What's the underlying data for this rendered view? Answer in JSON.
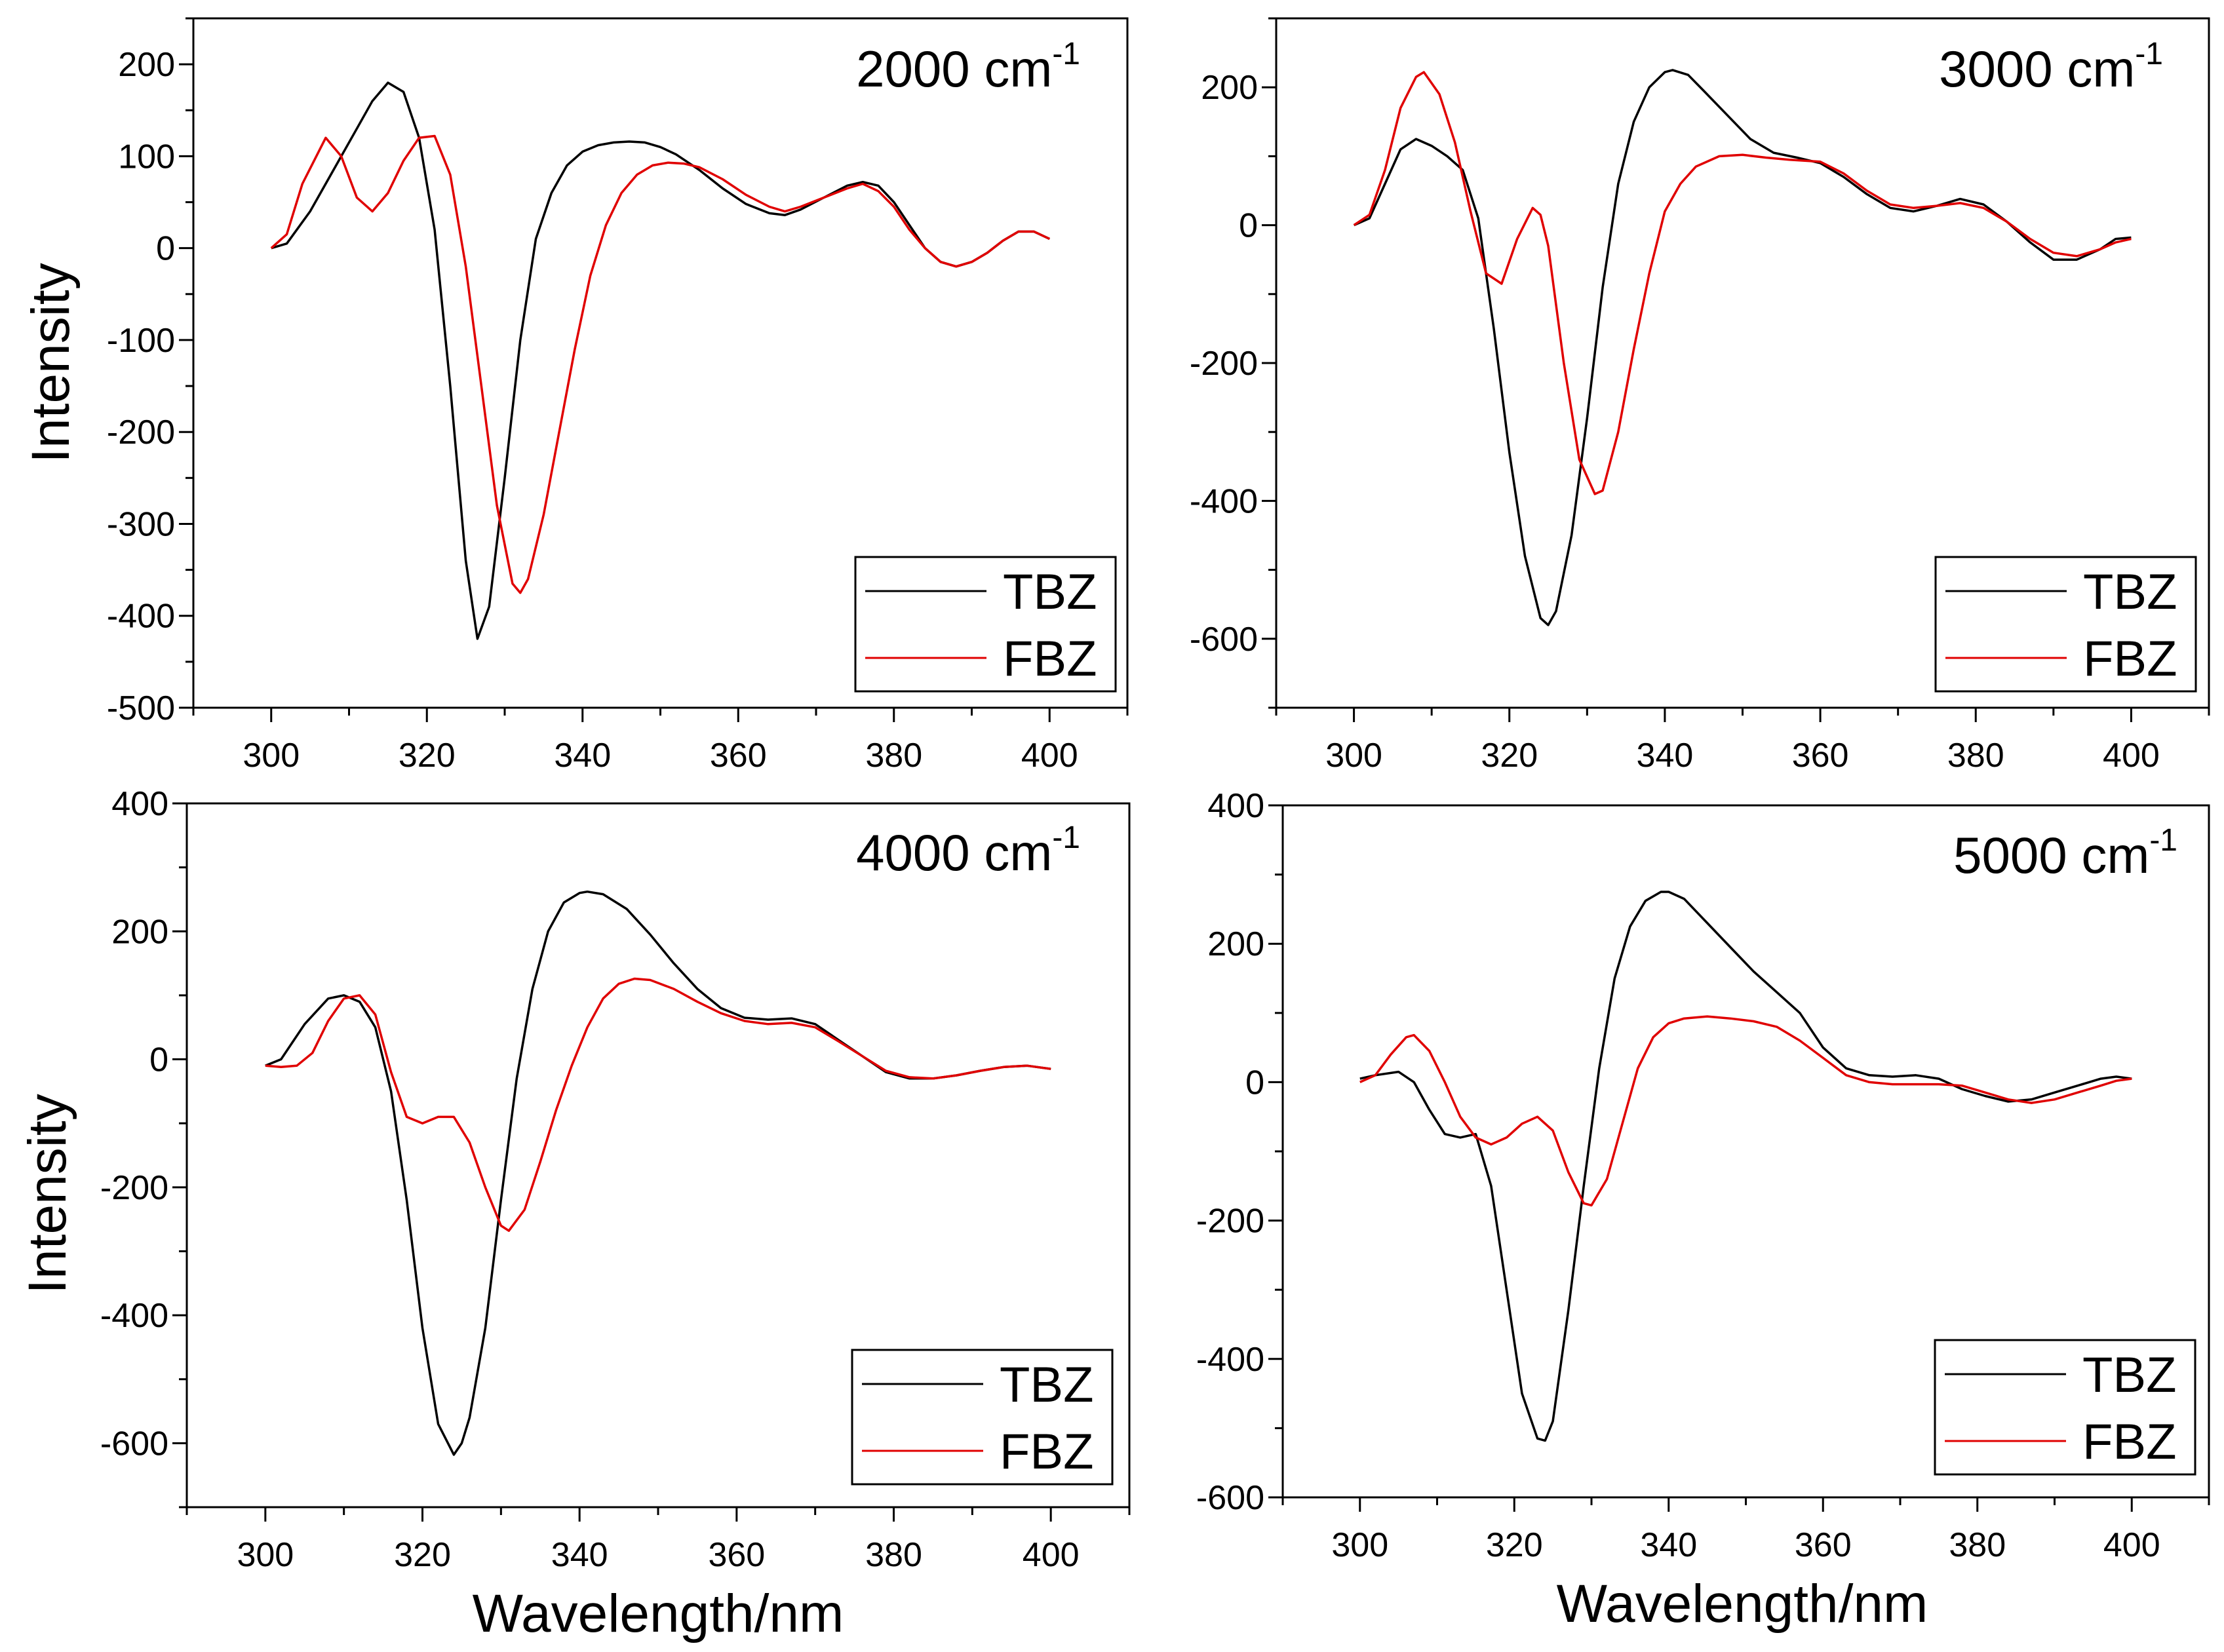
{
  "chart_data": [
    {
      "type": "line",
      "panel": "top-left",
      "title": "2000 cm",
      "title_superscript": "-1",
      "xlabel": "",
      "ylabel": "Intensity",
      "xlim": [
        290,
        410
      ],
      "ylim": [
        -500,
        250
      ],
      "xticks": [
        300,
        320,
        340,
        360,
        380,
        400
      ],
      "yticks": [
        200,
        100,
        0,
        -100,
        -200,
        -300,
        -400,
        -500
      ],
      "legend_position": "bottom-right",
      "series": [
        {
          "name": "TBZ",
          "color": "#000000",
          "x": [
            300,
            302,
            305,
            308,
            311,
            313,
            315,
            317,
            319,
            321,
            323,
            325,
            326.5,
            328,
            330,
            332,
            334,
            336,
            338,
            340,
            342,
            344,
            346,
            348,
            350,
            352,
            355,
            358,
            361,
            364,
            366,
            368,
            371,
            374,
            376,
            378,
            380,
            382,
            384,
            386,
            388,
            390,
            392,
            394,
            396,
            398,
            400
          ],
          "y": [
            0,
            5,
            40,
            85,
            130,
            160,
            180,
            170,
            120,
            20,
            -150,
            -340,
            -425,
            -390,
            -250,
            -100,
            10,
            60,
            90,
            105,
            112,
            115,
            116,
            115,
            110,
            102,
            85,
            65,
            48,
            38,
            36,
            42,
            55,
            68,
            72,
            68,
            50,
            25,
            0,
            -15,
            -20,
            -15,
            -5,
            8,
            18,
            18,
            10
          ]
        },
        {
          "name": "FBZ",
          "color": "#e00000",
          "x": [
            300,
            302,
            304,
            307,
            309,
            311,
            313,
            315,
            317,
            319,
            321,
            323,
            325,
            327,
            329,
            331,
            332,
            333,
            335,
            337,
            339,
            341,
            343,
            345,
            347,
            349,
            351,
            353,
            355,
            358,
            361,
            364,
            366,
            368,
            371,
            374,
            376,
            378,
            380,
            382,
            384,
            386,
            388,
            390,
            392,
            394,
            396,
            398,
            400
          ],
          "y": [
            0,
            15,
            70,
            120,
            100,
            55,
            40,
            60,
            95,
            120,
            122,
            80,
            -20,
            -150,
            -280,
            -365,
            -375,
            -360,
            -290,
            -200,
            -110,
            -30,
            25,
            60,
            80,
            90,
            93,
            92,
            88,
            75,
            58,
            45,
            40,
            45,
            55,
            65,
            70,
            62,
            45,
            20,
            0,
            -15,
            -20,
            -15,
            -5,
            8,
            18,
            18,
            10
          ]
        }
      ]
    },
    {
      "type": "line",
      "panel": "top-right",
      "title": "3000 cm",
      "title_superscript": "-1",
      "xlabel": "",
      "ylabel": "",
      "xlim": [
        290,
        410
      ],
      "ylim": [
        -700,
        300
      ],
      "xticks": [
        300,
        320,
        340,
        360,
        380,
        400
      ],
      "yticks": [
        200,
        0,
        -200,
        -400,
        -600
      ],
      "legend_position": "bottom-right",
      "series": [
        {
          "name": "TBZ",
          "color": "#000000",
          "x": [
            300,
            302,
            304,
            306,
            308,
            310,
            312,
            314,
            316,
            318,
            320,
            322,
            324,
            325,
            326,
            328,
            330,
            332,
            334,
            336,
            338,
            340,
            341,
            343,
            345,
            348,
            351,
            354,
            357,
            360,
            363,
            366,
            369,
            372,
            375,
            378,
            381,
            384,
            387,
            390,
            393,
            396,
            398,
            400
          ],
          "y": [
            0,
            10,
            60,
            110,
            125,
            115,
            100,
            80,
            10,
            -150,
            -330,
            -480,
            -570,
            -580,
            -560,
            -450,
            -280,
            -90,
            60,
            150,
            200,
            222,
            225,
            218,
            195,
            160,
            125,
            105,
            98,
            90,
            70,
            45,
            25,
            20,
            28,
            38,
            30,
            5,
            -25,
            -50,
            -50,
            -35,
            -20,
            -18
          ]
        },
        {
          "name": "FBZ",
          "color": "#e00000",
          "x": [
            300,
            302,
            304,
            306,
            308,
            309,
            311,
            313,
            315,
            317,
            319,
            321,
            323,
            324,
            325,
            327,
            329,
            331,
            332,
            334,
            336,
            338,
            340,
            342,
            344,
            347,
            350,
            353,
            356,
            360,
            363,
            366,
            369,
            372,
            375,
            378,
            381,
            384,
            387,
            390,
            393,
            396,
            398,
            400
          ],
          "y": [
            0,
            15,
            80,
            170,
            215,
            222,
            190,
            120,
            20,
            -70,
            -85,
            -20,
            25,
            15,
            -30,
            -200,
            -340,
            -390,
            -385,
            -300,
            -180,
            -70,
            20,
            60,
            85,
            100,
            102,
            98,
            95,
            92,
            75,
            50,
            30,
            25,
            28,
            32,
            25,
            5,
            -20,
            -40,
            -45,
            -35,
            -25,
            -20
          ]
        }
      ]
    },
    {
      "type": "line",
      "panel": "bottom-left",
      "title": "4000 cm",
      "title_superscript": "-1",
      "xlabel": "",
      "ylabel": "Intensity",
      "xlim": [
        290,
        410
      ],
      "ylim": [
        -700,
        400
      ],
      "xticks": [
        300,
        320,
        340,
        360,
        380,
        400
      ],
      "yticks": [
        400,
        200,
        0,
        -200,
        -400,
        -600
      ],
      "legend_position": "bottom-right",
      "series": [
        {
          "name": "TBZ",
          "color": "#000000",
          "x": [
            300,
            302,
            305,
            308,
            310,
            312,
            314,
            316,
            318,
            320,
            322,
            324,
            325,
            326,
            328,
            330,
            332,
            334,
            336,
            338,
            340,
            341,
            343,
            346,
            349,
            352,
            355,
            358,
            361,
            364,
            367,
            370,
            373,
            376,
            379,
            382,
            385,
            388,
            391,
            394,
            397,
            400
          ],
          "y": [
            -10,
            0,
            55,
            95,
            100,
            90,
            50,
            -50,
            -220,
            -420,
            -570,
            -618,
            -600,
            -560,
            -420,
            -220,
            -30,
            110,
            200,
            245,
            260,
            262,
            258,
            235,
            195,
            150,
            110,
            80,
            65,
            62,
            64,
            55,
            30,
            5,
            -20,
            -30,
            -30,
            -25,
            -18,
            -12,
            -10,
            -15
          ]
        },
        {
          "name": "FBZ",
          "color": "#e00000",
          "x": [
            300,
            302,
            304,
            306,
            308,
            310,
            312,
            314,
            316,
            318,
            320,
            322,
            324,
            326,
            328,
            330,
            331,
            333,
            335,
            337,
            339,
            341,
            343,
            345,
            347,
            349,
            352,
            355,
            358,
            361,
            364,
            367,
            370,
            373,
            376,
            379,
            382,
            385,
            388,
            391,
            394,
            397,
            400
          ],
          "y": [
            -10,
            -12,
            -10,
            10,
            60,
            95,
            100,
            70,
            -20,
            -90,
            -100,
            -90,
            -90,
            -130,
            -200,
            -260,
            -268,
            -235,
            -160,
            -80,
            -10,
            50,
            95,
            118,
            126,
            124,
            110,
            90,
            72,
            60,
            55,
            57,
            50,
            28,
            5,
            -18,
            -28,
            -30,
            -25,
            -18,
            -12,
            -10,
            -15
          ]
        }
      ]
    },
    {
      "type": "line",
      "panel": "bottom-right",
      "title": "5000 cm",
      "title_superscript": "-1",
      "xlabel": "Wavelength/nm",
      "ylabel": "",
      "xlim": [
        290,
        410
      ],
      "ylim": [
        -600,
        400
      ],
      "xticks": [
        300,
        320,
        340,
        360,
        380,
        400
      ],
      "yticks": [
        400,
        200,
        0,
        -200,
        -400,
        -600
      ],
      "legend_position": "bottom-right",
      "series": [
        {
          "name": "TBZ",
          "color": "#000000",
          "x": [
            300,
            302,
            305,
            307,
            309,
            311,
            313,
            315,
            317,
            319,
            321,
            323,
            324,
            325,
            327,
            329,
            331,
            333,
            335,
            337,
            339,
            340,
            342,
            345,
            348,
            351,
            354,
            357,
            360,
            363,
            366,
            369,
            372,
            375,
            378,
            381,
            384,
            387,
            390,
            393,
            396,
            398,
            400
          ],
          "y": [
            5,
            10,
            15,
            0,
            -40,
            -75,
            -80,
            -75,
            -150,
            -300,
            -450,
            -515,
            -518,
            -490,
            -330,
            -150,
            20,
            150,
            225,
            262,
            275,
            275,
            265,
            230,
            195,
            160,
            130,
            100,
            50,
            20,
            10,
            8,
            10,
            5,
            -10,
            -20,
            -28,
            -25,
            -15,
            -5,
            5,
            8,
            5
          ]
        },
        {
          "name": "FBZ",
          "color": "#e00000",
          "x": [
            300,
            302,
            304,
            306,
            307,
            309,
            311,
            313,
            315,
            317,
            319,
            321,
            323,
            325,
            327,
            329,
            330,
            332,
            334,
            336,
            338,
            340,
            342,
            345,
            348,
            351,
            354,
            357,
            360,
            363,
            366,
            369,
            372,
            375,
            378,
            381,
            384,
            387,
            390,
            393,
            396,
            398,
            400
          ],
          "y": [
            0,
            10,
            40,
            65,
            68,
            45,
            0,
            -50,
            -80,
            -90,
            -80,
            -60,
            -50,
            -70,
            -130,
            -175,
            -178,
            -140,
            -60,
            20,
            65,
            85,
            92,
            95,
            92,
            88,
            80,
            60,
            35,
            10,
            0,
            -3,
            -3,
            -3,
            -5,
            -15,
            -25,
            -30,
            -25,
            -15,
            -5,
            2,
            5
          ]
        }
      ]
    }
  ],
  "legend": {
    "tbz_label": "TBZ",
    "fbz_label": "FBZ"
  },
  "shared_xlabel": "Wavelength/nm"
}
